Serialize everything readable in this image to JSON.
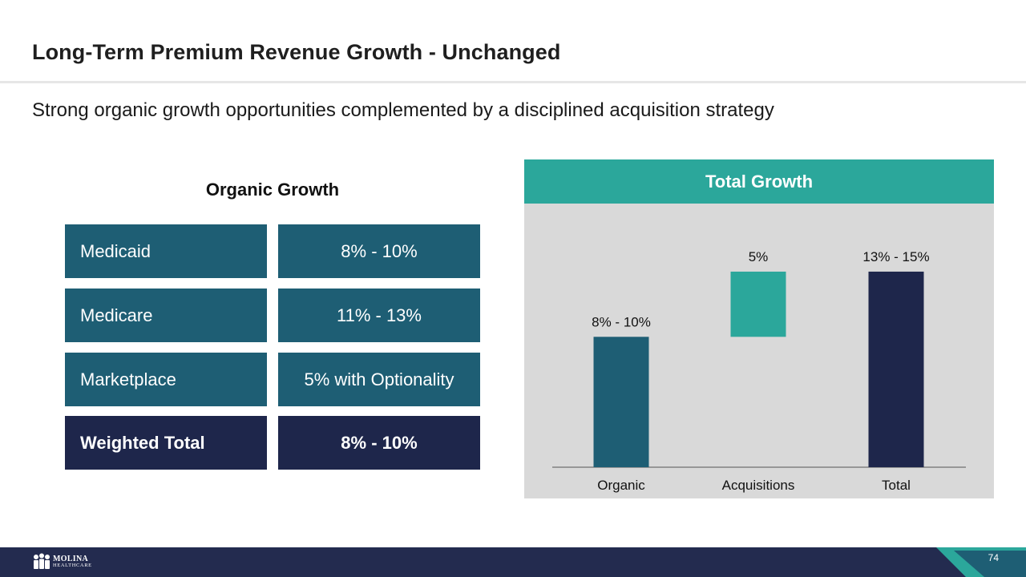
{
  "slide": {
    "title": "Long-Term Premium Revenue Growth - Unchanged",
    "subtitle": "Strong organic growth opportunities complemented by a disciplined acquisition strategy",
    "page_number": "74"
  },
  "organic_table": {
    "heading": "Organic Growth",
    "rows": [
      {
        "label": "Medicaid",
        "value": "8% - 10%"
      },
      {
        "label": "Medicare",
        "value": "11% - 13%"
      },
      {
        "label": "Marketplace",
        "value": "5% with Optionality"
      },
      {
        "label": "Weighted Total",
        "value": "8%  - 10%"
      }
    ]
  },
  "panel": {
    "header": "Total Growth"
  },
  "logo": {
    "line1": "MOLINA",
    "line2": "HEALTHCARE"
  },
  "colors": {
    "teal_dark": "#1e5e74",
    "navy": "#1e264b",
    "teal_light": "#2ba79b",
    "panel_bg": "#d9d9d9"
  },
  "chart_data": {
    "type": "bar",
    "subtype": "waterfall",
    "title": "Total Growth",
    "categories": [
      "Organic",
      "Acquisitions",
      "Total"
    ],
    "bars": [
      {
        "category": "Organic",
        "base": 0,
        "value": 10,
        "label": "8% - 10%",
        "color": "#1e5e74"
      },
      {
        "category": "Acquisitions",
        "base": 10,
        "value": 5,
        "label": "5%",
        "color": "#2ba79b"
      },
      {
        "category": "Total",
        "base": 0,
        "value": 15,
        "label": "13% - 15%",
        "color": "#1e264b"
      }
    ],
    "ylim": [
      0,
      16
    ],
    "xlabel": "",
    "ylabel": "",
    "grid": false
  }
}
